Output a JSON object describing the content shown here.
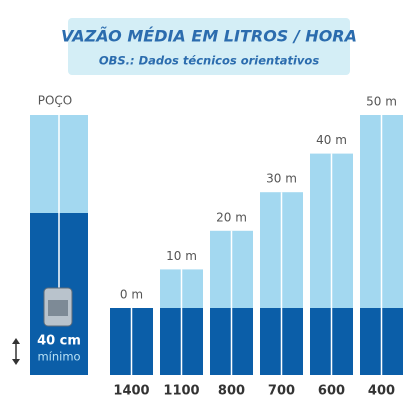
{
  "chart_data": {
    "type": "bar",
    "title": "VAZÃO MÉDIA EM LITROS / HORA",
    "subtitle": "OBS.: Dados técnicos orientativos",
    "annotations": {
      "well": "POÇO",
      "depth": "40 cm",
      "depth_note": "mínimo"
    },
    "categories": [
      "1400",
      "1100",
      "800",
      "700",
      "600",
      "400"
    ],
    "values": [
      0,
      10,
      20,
      30,
      40,
      50
    ],
    "value_labels": [
      "0 m",
      "10 m",
      "20 m",
      "30 m",
      "40 m",
      "50 m"
    ],
    "color": "#a3d8f0",
    "base_color": "#0b5ea8"
  }
}
